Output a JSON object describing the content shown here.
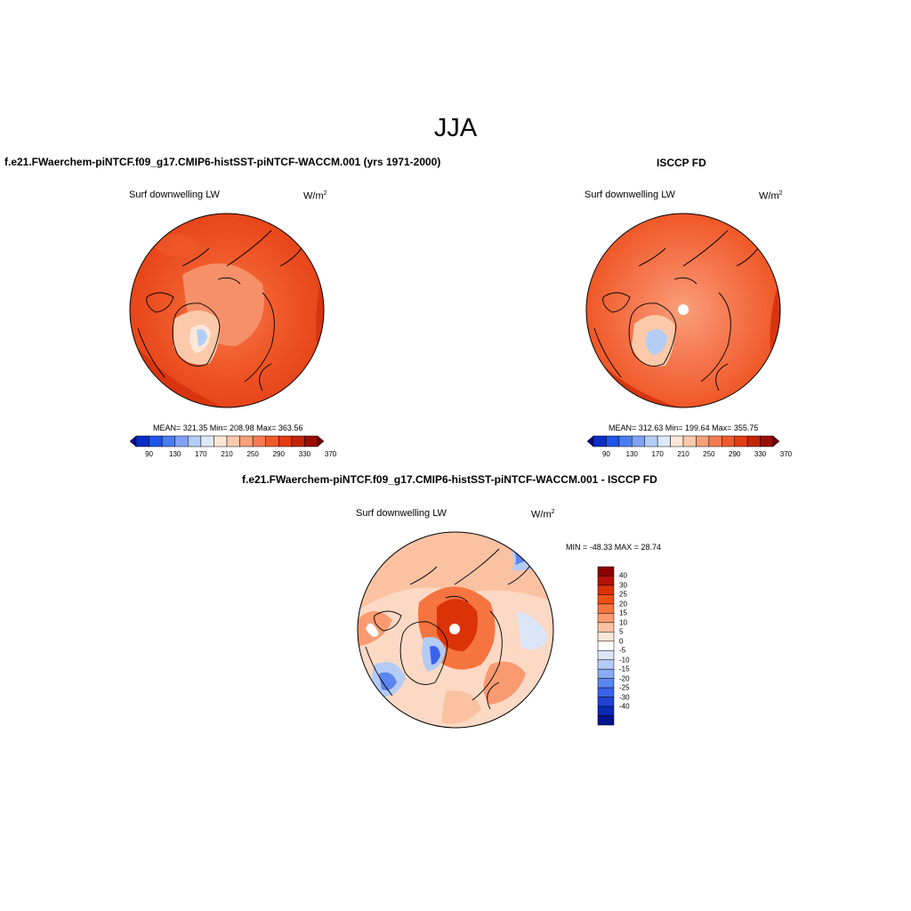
{
  "figure": {
    "season": "JJA",
    "model_title": "f.e21.FWaerchem-piNTCF.f09_g17.CMIP6-histSST-piNTCF-WACCM.001 (yrs 1971-2000)",
    "obs_title": "ISCCP FD",
    "diff_title": "f.e21.FWaerchem-piNTCF.f09_g17.CMIP6-histSST-piNTCF-WACCM.001 - ISCCP FD"
  },
  "panels": {
    "model": {
      "variable": "Surf downwelling LW",
      "units_base": "W/m",
      "units_exp": "2",
      "stats": "MEAN= 321.35  Min= 208.98  Max= 363.56"
    },
    "obs": {
      "variable": "Surf downwelling LW",
      "units_base": "W/m",
      "units_exp": "2",
      "stats": "MEAN= 312.63  Min= 199.64  Max= 355.75"
    },
    "diff": {
      "variable": "Surf downwelling LW",
      "units_base": "W/m",
      "units_exp": "2",
      "stats": "MIN = -48.33 MAX =  28.74"
    }
  },
  "colorbars": {
    "abs": {
      "ticks": [
        "90",
        "130",
        "170",
        "210",
        "250",
        "290",
        "330",
        "370"
      ],
      "colors": [
        "#08088a",
        "#0c2cc8",
        "#1f55e8",
        "#4a7cf2",
        "#7fa2f4",
        "#b3cdf6",
        "#dde9f9",
        "#fde8d8",
        "#fcc9aa",
        "#f9a07a",
        "#f67a52",
        "#f05a2a",
        "#e23c12",
        "#c22408",
        "#9a0f04",
        "#6e0202"
      ]
    },
    "diff": {
      "ticks": [
        "40",
        "30",
        "25",
        "20",
        "15",
        "10",
        "5",
        "0",
        "-5",
        "-10",
        "-15",
        "-20",
        "-25",
        "-30",
        "-40"
      ],
      "colors": [
        "#8b0000",
        "#b31204",
        "#dc3208",
        "#f24f14",
        "#f67440",
        "#f99a70",
        "#fbc2a2",
        "#fde7d6",
        "#ffffff",
        "#dae6f8",
        "#b4cbf6",
        "#8aabf2",
        "#5b85ef",
        "#3a62ea",
        "#1f43d6",
        "#0a2ab4",
        "#06138a"
      ]
    }
  }
}
